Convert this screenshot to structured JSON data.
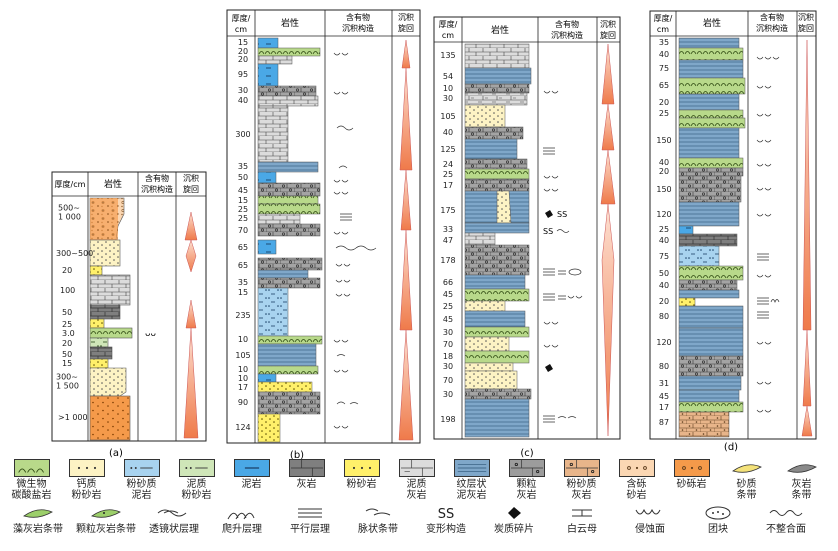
{
  "panels": [
    {
      "id": "a",
      "caption": "(a)",
      "headers": {
        "thickness": "厚度/cm",
        "lithology": "岩性",
        "structure": "含有物\n沉积构造",
        "cycle": "沉积\n旋回"
      },
      "thickness_labels": [
        "500~\n1 000",
        "300~500",
        "20",
        "100",
        "50",
        "25",
        "3.0",
        "20",
        "50",
        "15",
        "300~\n1 500",
        ">1 000"
      ],
      "structure_labels": [
        "ᴗᴗ"
      ]
    },
    {
      "id": "b",
      "caption": "(b)",
      "headers": {
        "thickness": "厚度/\ncm",
        "lithology": "岩性",
        "structure": "含有物\n沉积构造",
        "cycle": "沉积\n旋回"
      },
      "thickness_labels": [
        "15",
        "20",
        "20",
        "95",
        "30",
        "40",
        "300",
        "35",
        "50",
        "45",
        "15",
        "25",
        "25",
        "70",
        "65",
        "65",
        "35",
        "15",
        "235",
        "10",
        "105",
        "10",
        "10",
        "17",
        "90",
        "124"
      ]
    },
    {
      "id": "c",
      "caption": "(c)",
      "headers": {
        "thickness": "厚度/\ncm",
        "lithology": "岩性",
        "structure": "含有物\n沉积构造",
        "cycle": "沉积\n旋回"
      },
      "thickness_labels": [
        "135",
        "54",
        "10",
        "30",
        "105",
        "40",
        "125",
        "24",
        "25",
        "17",
        "175",
        "33",
        "47",
        "178",
        "66",
        "45",
        "25",
        "45",
        "30",
        "70",
        "18",
        "30",
        "70",
        "30",
        "198"
      ],
      "structure_labels": [
        "SS",
        "SS"
      ]
    },
    {
      "id": "d",
      "caption": "(d)",
      "headers": {
        "thickness": "厚度/\ncm",
        "lithology": "岩性",
        "structure": "含有物\n沉积构造",
        "cycle": "沉积\n旋回"
      },
      "thickness_labels": [
        "35",
        "40",
        "75",
        "65",
        "20",
        "25",
        "150",
        "40",
        "20",
        "150",
        "120",
        "25",
        "40",
        "75",
        "50",
        "40",
        "20",
        "80",
        "120",
        "80",
        "31",
        "45",
        "17",
        "87"
      ]
    }
  ],
  "legend": [
    {
      "label": "微生物\n碳酸盐岩",
      "color": "#b8d98a",
      "icon": "microbial"
    },
    {
      "label": "钙质\n粉砂岩",
      "color": "#fdf3c4",
      "icon": "dots"
    },
    {
      "label": "粉砂质\n泥岩",
      "color": "#a8d3ef",
      "icon": "dots-dash"
    },
    {
      "label": "泥质\n粉砂岩",
      "color": "#cfe6b8",
      "icon": "dots-dash"
    },
    {
      "label": "泥岩",
      "color": "#4aa8e6",
      "icon": "dash"
    },
    {
      "label": "灰岩",
      "color": "#7f7f7f",
      "icon": "brick"
    },
    {
      "label": "粉砂岩",
      "color": "#fff06a",
      "icon": "dots"
    },
    {
      "label": "泥质\n灰岩",
      "color": "#dcdcdc",
      "icon": "brick-dash"
    },
    {
      "label": "纹层状\n泥灰岩",
      "color": "#7fa7c9",
      "icon": "lines"
    },
    {
      "label": "颗粒\n灰岩",
      "color": "#9c9c9c",
      "icon": "brick-dot"
    },
    {
      "label": "粉砂质\n灰岩",
      "color": "#e8b58a",
      "icon": "brick-dot"
    },
    {
      "label": "含砾\n砂岩",
      "color": "#fbd7b3",
      "icon": "circles"
    },
    {
      "label": "砂砾岩",
      "color": "#f59a4a",
      "icon": "circles"
    },
    {
      "label": "砂质\n条带",
      "color": "#ffffff",
      "icon": "lens-yellow"
    },
    {
      "label": "灰岩\n条带",
      "color": "#ffffff",
      "icon": "lens-grey"
    },
    {
      "label": "藻灰岩条带",
      "color": "#ffffff",
      "icon": "lens-green"
    },
    {
      "label": "颗粒灰岩条带",
      "color": "#ffffff",
      "icon": "lens-green-dot"
    },
    {
      "label": "透镜状层理",
      "color": "#ffffff",
      "icon": "lenticular"
    },
    {
      "label": "爬升层理",
      "color": "#ffffff",
      "icon": "climbing"
    },
    {
      "label": "平行层理",
      "color": "#ffffff",
      "icon": "parallel"
    },
    {
      "label": "脉状条带",
      "color": "#ffffff",
      "icon": "vein"
    },
    {
      "label": "变形构造",
      "color": "#ffffff",
      "icon": "ss"
    },
    {
      "label": "炭质碎片",
      "color": "#ffffff",
      "icon": "carbon"
    },
    {
      "label": "白云母",
      "color": "#ffffff",
      "icon": "mica"
    },
    {
      "label": "侵蚀面",
      "color": "#ffffff",
      "icon": "erosion"
    },
    {
      "label": "团块",
      "color": "#ffffff",
      "icon": "nodule"
    },
    {
      "label": "不整合面",
      "color": "#ffffff",
      "icon": "unconformity"
    }
  ]
}
